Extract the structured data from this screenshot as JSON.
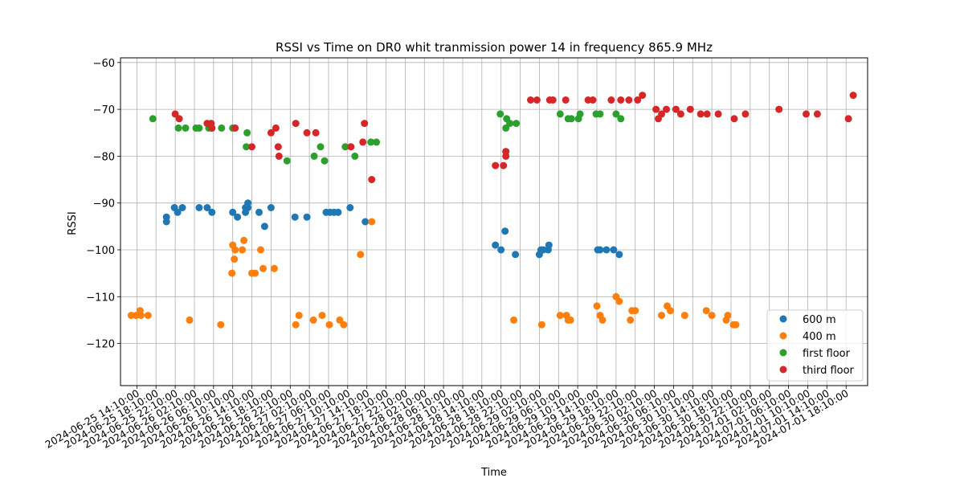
{
  "chart_data": {
    "type": "scatter",
    "title": "RSSI vs Time on DR0  whit tranmission power 14 in frequency 865.9 MHz",
    "xlabel": "Time",
    "ylabel": "RSSI",
    "xlim": [
      "2024-06-25 10:45",
      "2024-07-01 22:40"
    ],
    "ylim": [
      -129,
      -59
    ],
    "yticks": [
      -120,
      -110,
      -100,
      -90,
      -80,
      -70,
      -60
    ],
    "xticks": [
      "2024-06-25 14:10:00",
      "2024-06-25 18:10:00",
      "2024-06-25 22:10:00",
      "2024-06-26 02:10:00",
      "2024-06-26 06:10:00",
      "2024-06-26 10:10:00",
      "2024-06-26 14:10:00",
      "2024-06-26 18:10:00",
      "2024-06-26 22:10:00",
      "2024-06-27 02:10:00",
      "2024-06-27 06:10:00",
      "2024-06-27 10:10:00",
      "2024-06-27 14:10:00",
      "2024-06-27 18:10:00",
      "2024-06-27 22:10:00",
      "2024-06-28 02:10:00",
      "2024-06-28 06:10:00",
      "2024-06-28 10:10:00",
      "2024-06-28 14:10:00",
      "2024-06-28 18:10:00",
      "2024-06-28 22:10:00",
      "2024-06-29 02:10:00",
      "2024-06-29 06:10:00",
      "2024-06-29 10:10:00",
      "2024-06-29 14:10:00",
      "2024-06-29 18:10:00",
      "2024-06-29 22:10:00",
      "2024-06-30 02:10:00",
      "2024-06-30 06:10:00",
      "2024-06-30 10:10:00",
      "2024-06-30 14:10:00",
      "2024-06-30 18:10:00",
      "2024-06-30 22:10:00",
      "2024-07-01 02:10:00",
      "2024-07-01 06:10:00",
      "2024-07-01 10:10:00",
      "2024-07-01 14:10:00",
      "2024-07-01 18:10:00"
    ],
    "grid": true,
    "legend_position": "lower-right",
    "series": [
      {
        "name": "600 m",
        "color": "#1f77b4",
        "points": [
          [
            "2024-06-25 20:20",
            -93
          ],
          [
            "2024-06-25 20:20",
            -94
          ],
          [
            "2024-06-25 22:00",
            -91
          ],
          [
            "2024-06-25 22:40",
            -92
          ],
          [
            "2024-06-25 23:40",
            -91
          ],
          [
            "2024-06-26 03:10",
            -91
          ],
          [
            "2024-06-26 04:50",
            -91
          ],
          [
            "2024-06-26 05:50",
            -92
          ],
          [
            "2024-06-26 10:10",
            -92
          ],
          [
            "2024-06-26 11:10",
            -93
          ],
          [
            "2024-06-26 12:50",
            -91
          ],
          [
            "2024-06-26 12:50",
            -92
          ],
          [
            "2024-06-26 13:20",
            -90
          ],
          [
            "2024-06-26 13:20",
            -91
          ],
          [
            "2024-06-26 15:40",
            -92
          ],
          [
            "2024-06-26 16:50",
            -95
          ],
          [
            "2024-06-26 18:10",
            -91
          ],
          [
            "2024-06-26 23:10",
            -93
          ],
          [
            "2024-06-27 01:40",
            -93
          ],
          [
            "2024-06-27 05:40",
            -92
          ],
          [
            "2024-06-27 06:30",
            -92
          ],
          [
            "2024-06-27 07:20",
            -92
          ],
          [
            "2024-06-27 08:10",
            -92
          ],
          [
            "2024-06-27 10:40",
            -91
          ],
          [
            "2024-06-27 13:50",
            -94
          ],
          [
            "2024-06-28 17:00",
            -99
          ],
          [
            "2024-06-28 18:10",
            -100
          ],
          [
            "2024-06-28 19:00",
            -96
          ],
          [
            "2024-06-28 21:10",
            -101
          ],
          [
            "2024-06-29 02:10",
            -101
          ],
          [
            "2024-06-29 02:30",
            -100
          ],
          [
            "2024-06-29 03:00",
            -100
          ],
          [
            "2024-06-29 04:00",
            -100
          ],
          [
            "2024-06-29 04:10",
            -99
          ],
          [
            "2024-06-29 14:20",
            -100
          ],
          [
            "2024-06-29 14:50",
            -100
          ],
          [
            "2024-06-29 16:10",
            -100
          ],
          [
            "2024-06-29 17:40",
            -100
          ],
          [
            "2024-06-29 18:50",
            -101
          ]
        ]
      },
      {
        "name": "400 m",
        "color": "#ff7f0e",
        "points": [
          [
            "2024-06-25 13:00",
            -114
          ],
          [
            "2024-06-25 14:00",
            -114
          ],
          [
            "2024-06-25 14:50",
            -113
          ],
          [
            "2024-06-25 15:00",
            -114
          ],
          [
            "2024-06-25 16:30",
            -114
          ],
          [
            "2024-06-26 01:10",
            -115
          ],
          [
            "2024-06-26 07:40",
            -116
          ],
          [
            "2024-06-26 10:00",
            -105
          ],
          [
            "2024-06-26 10:10",
            -99
          ],
          [
            "2024-06-26 10:30",
            -102
          ],
          [
            "2024-06-26 10:40",
            -100
          ],
          [
            "2024-06-26 12:10",
            -100
          ],
          [
            "2024-06-26 12:30",
            -98
          ],
          [
            "2024-06-26 14:10",
            -105
          ],
          [
            "2024-06-26 14:50",
            -105
          ],
          [
            "2024-06-26 16:00",
            -100
          ],
          [
            "2024-06-26 16:30",
            -104
          ],
          [
            "2024-06-26 18:50",
            -104
          ],
          [
            "2024-06-26 23:20",
            -116
          ],
          [
            "2024-06-27 00:00",
            -114
          ],
          [
            "2024-06-27 03:00",
            -115
          ],
          [
            "2024-06-27 04:50",
            -114
          ],
          [
            "2024-06-27 06:20",
            -116
          ],
          [
            "2024-06-27 08:30",
            -115
          ],
          [
            "2024-06-27 09:20",
            -116
          ],
          [
            "2024-06-27 12:50",
            -101
          ],
          [
            "2024-06-27 15:10",
            -94
          ],
          [
            "2024-06-28 20:50",
            -115
          ],
          [
            "2024-06-29 02:40",
            -116
          ],
          [
            "2024-06-29 06:30",
            -114
          ],
          [
            "2024-06-29 07:50",
            -114
          ],
          [
            "2024-06-29 08:10",
            -115
          ],
          [
            "2024-06-29 08:40",
            -115
          ],
          [
            "2024-06-29 14:10",
            -112
          ],
          [
            "2024-06-29 14:50",
            -114
          ],
          [
            "2024-06-29 15:20",
            -115
          ],
          [
            "2024-06-29 18:10",
            -110
          ],
          [
            "2024-06-29 18:50",
            -111
          ],
          [
            "2024-06-29 21:10",
            -115
          ],
          [
            "2024-06-29 21:30",
            -113
          ],
          [
            "2024-06-29 22:10",
            -113
          ],
          [
            "2024-06-30 03:40",
            -114
          ],
          [
            "2024-06-30 04:50",
            -112
          ],
          [
            "2024-06-30 05:30",
            -113
          ],
          [
            "2024-06-30 08:30",
            -114
          ],
          [
            "2024-06-30 13:00",
            -113
          ],
          [
            "2024-06-30 14:10",
            -114
          ],
          [
            "2024-06-30 17:10",
            -115
          ],
          [
            "2024-06-30 17:30",
            -114
          ],
          [
            "2024-06-30 18:40",
            -116
          ],
          [
            "2024-06-30 19:10",
            -116
          ]
        ]
      },
      {
        "name": "first floor",
        "color": "#2ca02c",
        "points": [
          [
            "2024-06-25 17:30",
            -72
          ],
          [
            "2024-06-25 22:50",
            -74
          ],
          [
            "2024-06-26 00:20",
            -74
          ],
          [
            "2024-06-26 02:30",
            -74
          ],
          [
            "2024-06-26 03:10",
            -74
          ],
          [
            "2024-06-26 05:10",
            -74
          ],
          [
            "2024-06-26 05:50",
            -74
          ],
          [
            "2024-06-26 07:50",
            -74
          ],
          [
            "2024-06-26 10:10",
            -74
          ],
          [
            "2024-06-26 13:00",
            -78
          ],
          [
            "2024-06-26 13:10",
            -75
          ],
          [
            "2024-06-26 21:30",
            -81
          ],
          [
            "2024-06-27 03:10",
            -80
          ],
          [
            "2024-06-27 04:30",
            -78
          ],
          [
            "2024-06-27 05:20",
            -81
          ],
          [
            "2024-06-27 09:40",
            -78
          ],
          [
            "2024-06-27 11:40",
            -80
          ],
          [
            "2024-06-27 15:00",
            -77
          ],
          [
            "2024-06-27 16:10",
            -77
          ],
          [
            "2024-06-28 18:00",
            -71
          ],
          [
            "2024-06-28 19:10",
            -74
          ],
          [
            "2024-06-28 19:20",
            -72
          ],
          [
            "2024-06-28 20:00",
            -73
          ],
          [
            "2024-06-28 21:20",
            -73
          ],
          [
            "2024-06-29 06:30",
            -71
          ],
          [
            "2024-06-29 08:10",
            -72
          ],
          [
            "2024-06-29 08:50",
            -72
          ],
          [
            "2024-06-29 10:20",
            -72
          ],
          [
            "2024-06-29 10:40",
            -71
          ],
          [
            "2024-06-29 14:00",
            -71
          ],
          [
            "2024-06-29 14:50",
            -71
          ],
          [
            "2024-06-29 18:10",
            -71
          ],
          [
            "2024-06-29 19:10",
            -72
          ]
        ]
      },
      {
        "name": "third floor",
        "color": "#d62728",
        "points": [
          [
            "2024-06-25 22:10",
            -71
          ],
          [
            "2024-06-25 23:00",
            -72
          ],
          [
            "2024-06-26 04:50",
            -73
          ],
          [
            "2024-06-26 05:40",
            -73
          ],
          [
            "2024-06-26 05:50",
            -74
          ],
          [
            "2024-06-26 10:40",
            -74
          ],
          [
            "2024-06-26 14:10",
            -78
          ],
          [
            "2024-06-26 18:10",
            -75
          ],
          [
            "2024-06-26 19:10",
            -74
          ],
          [
            "2024-06-26 19:40",
            -78
          ],
          [
            "2024-06-26 19:50",
            -80
          ],
          [
            "2024-06-26 23:20",
            -73
          ],
          [
            "2024-06-27 01:40",
            -75
          ],
          [
            "2024-06-27 03:30",
            -75
          ],
          [
            "2024-06-27 10:50",
            -78
          ],
          [
            "2024-06-27 13:20",
            -77
          ],
          [
            "2024-06-27 13:40",
            -73
          ],
          [
            "2024-06-27 15:10",
            -85
          ],
          [
            "2024-06-28 17:00",
            -82
          ],
          [
            "2024-06-28 18:40",
            -82
          ],
          [
            "2024-06-28 19:10",
            -80
          ],
          [
            "2024-06-28 19:10",
            -79
          ],
          [
            "2024-06-29 00:20",
            -68
          ],
          [
            "2024-06-29 01:40",
            -68
          ],
          [
            "2024-06-29 04:20",
            -68
          ],
          [
            "2024-06-29 05:00",
            -68
          ],
          [
            "2024-06-29 07:40",
            -68
          ],
          [
            "2024-06-29 12:20",
            -68
          ],
          [
            "2024-06-29 13:20",
            -68
          ],
          [
            "2024-06-29 17:10",
            -68
          ],
          [
            "2024-06-29 19:10",
            -68
          ],
          [
            "2024-06-29 20:50",
            -68
          ],
          [
            "2024-06-29 22:40",
            -68
          ],
          [
            "2024-06-29 23:40",
            -67
          ],
          [
            "2024-06-30 02:30",
            -70
          ],
          [
            "2024-06-30 03:00",
            -72
          ],
          [
            "2024-06-30 03:40",
            -71
          ],
          [
            "2024-06-30 04:40",
            -70
          ],
          [
            "2024-06-30 06:40",
            -70
          ],
          [
            "2024-06-30 07:40",
            -71
          ],
          [
            "2024-06-30 09:40",
            -70
          ],
          [
            "2024-06-30 11:50",
            -71
          ],
          [
            "2024-06-30 13:10",
            -71
          ],
          [
            "2024-06-30 15:30",
            -71
          ],
          [
            "2024-06-30 18:50",
            -72
          ],
          [
            "2024-06-30 21:10",
            -71
          ],
          [
            "2024-07-01 04:10",
            -70
          ],
          [
            "2024-07-01 09:50",
            -71
          ],
          [
            "2024-07-01 12:10",
            -71
          ],
          [
            "2024-07-01 18:40",
            -72
          ],
          [
            "2024-07-01 19:40",
            -67
          ]
        ]
      }
    ]
  }
}
